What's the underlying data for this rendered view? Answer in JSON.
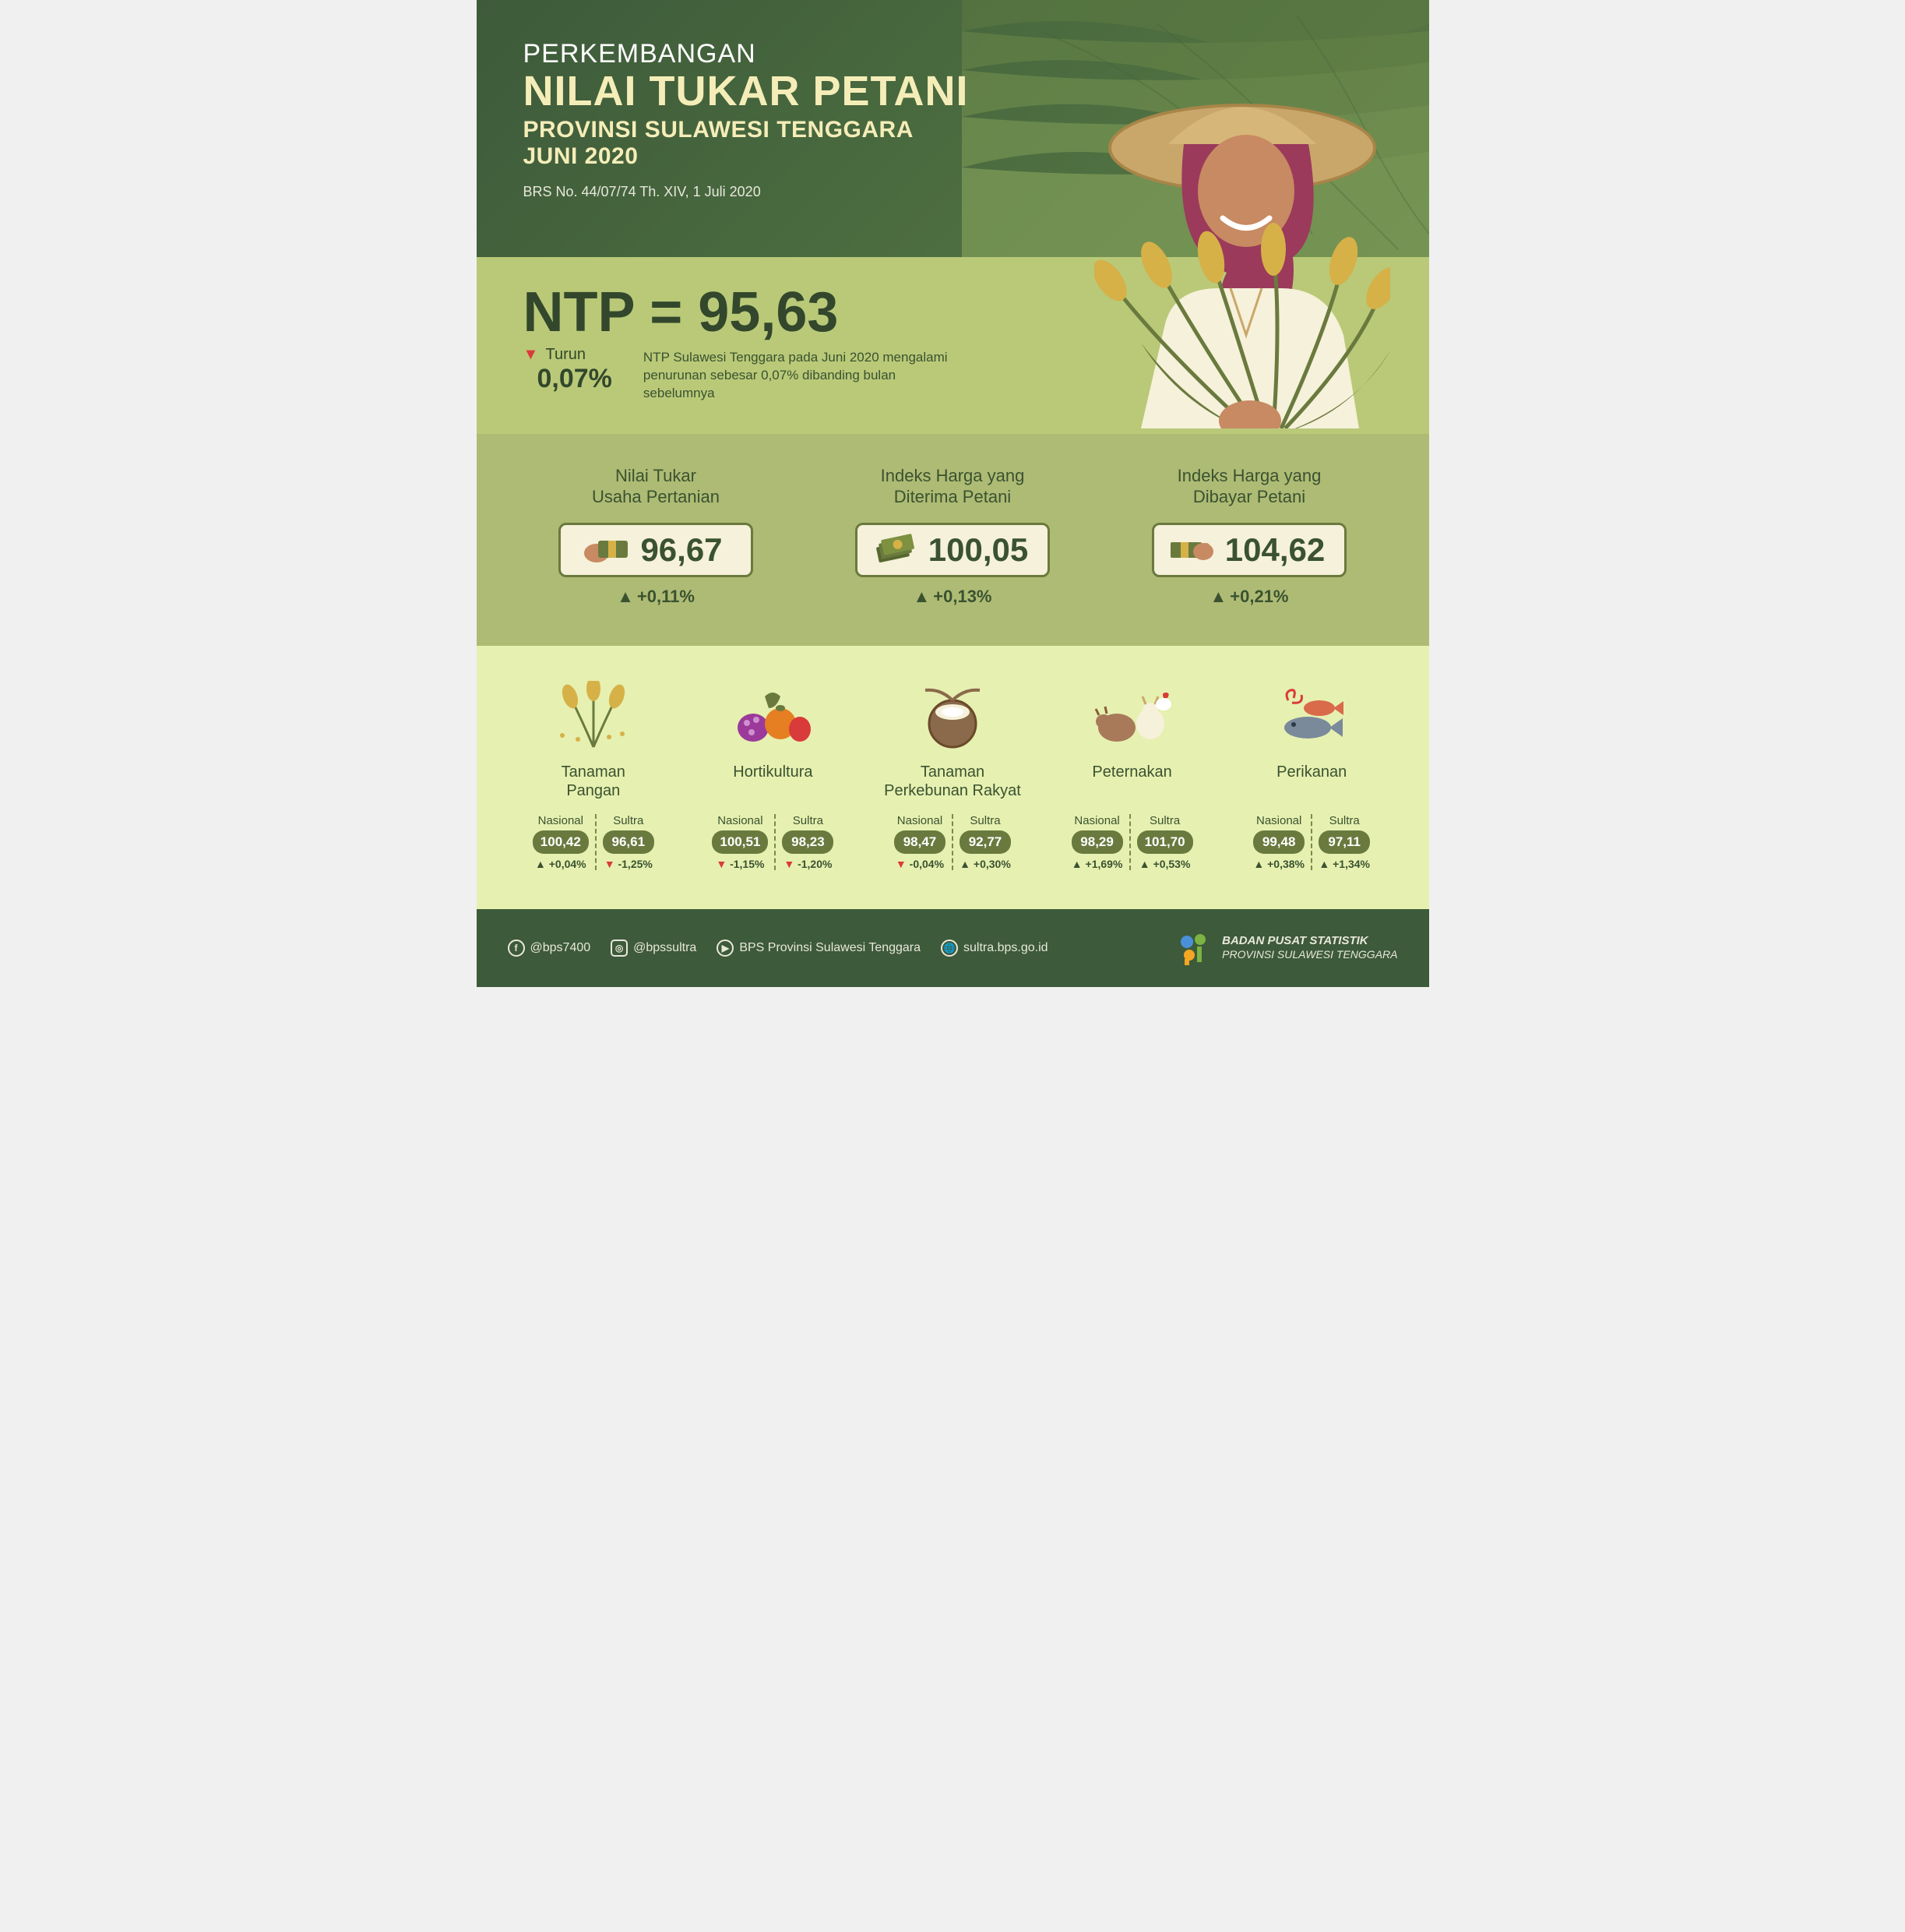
{
  "header": {
    "pretitle": "PERKEMBANGAN",
    "title": "NILAI TUKAR PETANI",
    "subtitle1": "PROVINSI SULAWESI TENGGARA",
    "subtitle2": "JUNI 2020",
    "brs": "BRS No. 44/07/74 Th. XIV, 1 Juli 2020"
  },
  "ntp": {
    "equation": "NTP = 95,63",
    "trend_label": "Turun",
    "trend_pct": "0,07%",
    "description": "NTP Sulawesi Tenggara pada Juni 2020 mengalami penurunan sebesar 0,07% dibanding bulan sebelumnya"
  },
  "indices": [
    {
      "title": "Nilai Tukar\nUsaha Pertanian",
      "value": "96,67",
      "delta": "+0,11%",
      "dir": "up"
    },
    {
      "title": "Indeks Harga yang\nDiterima Petani",
      "value": "100,05",
      "delta": "+0,13%",
      "dir": "up"
    },
    {
      "title": "Indeks Harga yang\nDibayar Petani",
      "value": "104,62",
      "delta": "+0,21%",
      "dir": "up"
    }
  ],
  "subsectors": [
    {
      "name": "Tanaman\nPangan",
      "nasional": {
        "value": "100,42",
        "chg": "+0,04%",
        "dir": "up"
      },
      "sultra": {
        "value": "96,61",
        "chg": "-1,25%",
        "dir": "dn"
      }
    },
    {
      "name": "Hortikultura",
      "nasional": {
        "value": "100,51",
        "chg": "-1,15%",
        "dir": "dn"
      },
      "sultra": {
        "value": "98,23",
        "chg": "-1,20%",
        "dir": "dn"
      }
    },
    {
      "name": "Tanaman\nPerkebunan Rakyat",
      "nasional": {
        "value": "98,47",
        "chg": "-0,04%",
        "dir": "dn"
      },
      "sultra": {
        "value": "92,77",
        "chg": "+0,30%",
        "dir": "up"
      }
    },
    {
      "name": "Peternakan",
      "nasional": {
        "value": "98,29",
        "chg": "+1,69%",
        "dir": "up"
      },
      "sultra": {
        "value": "101,70",
        "chg": "+0,53%",
        "dir": "up"
      }
    },
    {
      "name": "Perikanan",
      "nasional": {
        "value": "99,48",
        "chg": "+0,38%",
        "dir": "up"
      },
      "sultra": {
        "value": "97,11",
        "chg": "+1,34%",
        "dir": "up"
      }
    }
  ],
  "labels": {
    "nasional": "Nasional",
    "sultra": "Sultra"
  },
  "footer": {
    "socials": [
      {
        "icon": "f",
        "text": "@bps7400"
      },
      {
        "icon": "ig",
        "text": "@bpssultra"
      },
      {
        "icon": "▶",
        "text": "BPS Provinsi Sulawesi Tenggara"
      },
      {
        "icon": "🌐",
        "text": "sultra.bps.go.id"
      }
    ],
    "org_line1": "BADAN PUSAT STATISTIK",
    "org_line2": "PROVINSI SULAWESI TENGGARA"
  },
  "colors": {
    "header_bg": "#3d5a3a",
    "ntp_bg": "#b9c978",
    "idx_bg": "#aebb74",
    "sub_bg": "#e6f0b0",
    "accent_cream": "#f5edb8",
    "dark_green": "#32472b",
    "pill": "#6a7a3e",
    "down_red": "#d93a3a"
  }
}
